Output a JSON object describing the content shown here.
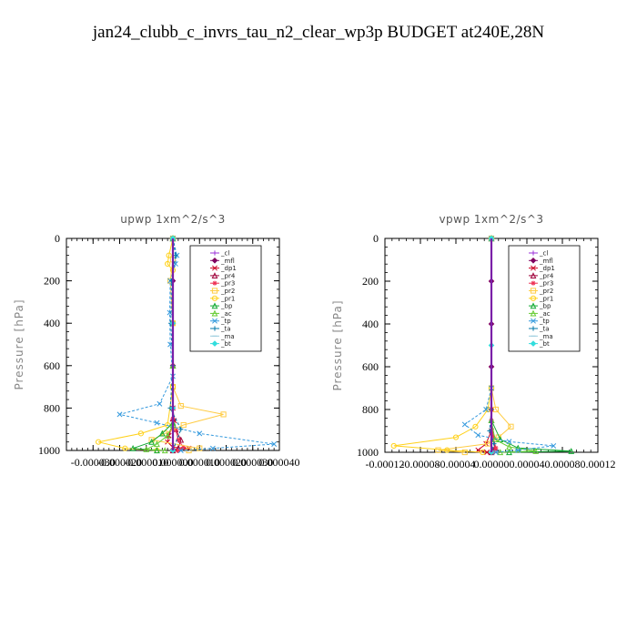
{
  "title": "jan24_clubb_c_invrs_tau_n2_clear_wp3p  BUDGET at240E,28N",
  "chart_data": [
    {
      "type": "line",
      "title": "upwp   1xm^2/s^3",
      "ylabel": "Pressure [hPa]",
      "ylim": [
        0,
        1000
      ],
      "yticks": [
        "0",
        "200",
        "400",
        "600",
        "800",
        "1000"
      ],
      "xlim": [
        -4e-05,
        4e-05
      ],
      "xticks": [
        "-0.000030",
        "-0.000020",
        "-0.000010",
        "0.000000",
        "0.000010",
        "0.000020",
        "0.000030",
        "0.000040"
      ],
      "legend": {
        "position": "top-right",
        "entries": [
          "_cl",
          "_mfl",
          "_dp1",
          "_pr4",
          "_pr3",
          "_pr2",
          "_pr1",
          "_bp",
          "_ac",
          "_tp",
          "_ta",
          "_ma",
          "_bt"
        ]
      },
      "series": [
        {
          "name": "_cl",
          "color": "#9b30d9",
          "points": [
            [
              0,
              0
            ],
            [
              0,
              200
            ],
            [
              0,
              400
            ],
            [
              0,
              600
            ],
            [
              0,
              800
            ],
            [
              0,
              1000
            ]
          ]
        },
        {
          "name": "_mfl",
          "color": "#800060",
          "points": [
            [
              0,
              0
            ],
            [
              0,
              200
            ],
            [
              0,
              400
            ],
            [
              0,
              600
            ],
            [
              0,
              800
            ],
            [
              0,
              1000
            ]
          ]
        },
        {
          "name": "_dp1",
          "color": "#cc0022",
          "points": [
            [
              0,
              0
            ],
            [
              0,
              400
            ],
            [
              0,
              800
            ],
            [
              5e-07,
              860
            ],
            [
              -1.5e-06,
              930
            ],
            [
              -2e-06,
              960
            ],
            [
              0,
              985
            ],
            [
              6e-06,
              990
            ],
            [
              1e-06,
              1000
            ]
          ]
        },
        {
          "name": "_pr4",
          "color": "#a0003a",
          "points": [
            [
              0,
              0
            ],
            [
              0,
              600
            ],
            [
              0,
              850
            ],
            [
              1e-06,
              900
            ],
            [
              3e-06,
              950
            ],
            [
              2e-06,
              990
            ],
            [
              0,
              1000
            ]
          ]
        },
        {
          "name": "_pr3",
          "color": "#ee3355",
          "points": [
            [
              0,
              0
            ],
            [
              0,
              600
            ],
            [
              0,
              850
            ],
            [
              1e-06,
              900
            ],
            [
              2e-06,
              950
            ],
            [
              4e-06,
              985
            ],
            [
              2e-06,
              1000
            ]
          ]
        },
        {
          "name": "_pr2",
          "color": "#ffcc44",
          "points": [
            [
              0,
              0
            ],
            [
              0,
              100
            ],
            [
              -1e-06,
              200
            ],
            [
              0,
              400
            ],
            [
              0,
              700
            ],
            [
              3e-06,
              790
            ],
            [
              1.9e-05,
              830
            ],
            [
              4e-06,
              880
            ],
            [
              -3e-06,
              920
            ],
            [
              -8e-06,
              950
            ],
            [
              1e-05,
              990
            ],
            [
              6e-06,
              1000
            ]
          ]
        },
        {
          "name": "_pr1",
          "color": "#ffd11a",
          "points": [
            [
              0,
              0
            ],
            [
              -1.5e-06,
              80
            ],
            [
              -2e-06,
              120
            ],
            [
              0,
              150
            ],
            [
              0,
              400
            ],
            [
              0,
              700
            ],
            [
              -2e-06,
              880
            ],
            [
              -1.2e-05,
              920
            ],
            [
              -2.8e-05,
              960
            ],
            [
              -1.8e-05,
              990
            ],
            [
              -6e-06,
              1000
            ]
          ]
        },
        {
          "name": "_bp",
          "color": "#11aa33",
          "points": [
            [
              0,
              0
            ],
            [
              0,
              600
            ],
            [
              0,
              870
            ],
            [
              -4e-06,
              920
            ],
            [
              -8e-06,
              960
            ],
            [
              -1.5e-05,
              990
            ],
            [
              -6e-06,
              1000
            ]
          ]
        },
        {
          "name": "_ac",
          "color": "#66cc33",
          "points": [
            [
              0,
              0
            ],
            [
              0,
              600
            ],
            [
              0,
              880
            ],
            [
              -2e-06,
              930
            ],
            [
              -6e-06,
              970
            ],
            [
              -1e-05,
              995
            ],
            [
              -3e-06,
              1000
            ]
          ]
        },
        {
          "name": "_tp",
          "color": "#3399dd",
          "points": [
            [
              0,
              0
            ],
            [
              1.5e-06,
              80
            ],
            [
              1e-06,
              120
            ],
            [
              -1e-06,
              200
            ],
            [
              -1.2e-06,
              350
            ],
            [
              -1e-06,
              500
            ],
            [
              0,
              650
            ],
            [
              -5e-06,
              780
            ],
            [
              -2e-05,
              830
            ],
            [
              -6e-06,
              870
            ],
            [
              1e-05,
              920
            ],
            [
              3.8e-05,
              970
            ],
            [
              1.5e-05,
              990
            ],
            [
              3e-06,
              1000
            ]
          ]
        },
        {
          "name": "_ta",
          "color": "#0077aa",
          "points": [
            [
              0,
              0
            ],
            [
              1e-06,
              80
            ],
            [
              -5e-07,
              200
            ],
            [
              -8e-07,
              400
            ],
            [
              0,
              600
            ],
            [
              -1e-06,
              800
            ],
            [
              3e-06,
              900
            ],
            [
              0,
              1000
            ]
          ]
        },
        {
          "name": "_ma",
          "color": "#99ccdd",
          "points": [
            [
              0,
              0
            ],
            [
              0,
              400
            ],
            [
              0,
              800
            ],
            [
              0,
              1000
            ]
          ]
        },
        {
          "name": "_bt",
          "color": "#33dddd",
          "points": [
            [
              0,
              0
            ],
            [
              0,
              400
            ],
            [
              0,
              800
            ],
            [
              0,
              1000
            ]
          ]
        }
      ]
    },
    {
      "type": "line",
      "title": "vpwp   1xm^2/s^3",
      "ylabel": "Pressure [hPa]",
      "ylim": [
        0,
        1000
      ],
      "yticks": [
        "0",
        "200",
        "400",
        "600",
        "800",
        "1000"
      ],
      "xlim": [
        -0.00012,
        0.00012
      ],
      "xticks": [
        "-0.00012",
        "-0.00008",
        "-0.00004",
        "0.00000",
        "0.00004",
        "0.00008",
        "0.00012"
      ],
      "legend": {
        "position": "top-right",
        "entries": [
          "_cl",
          "_mfl",
          "_dp1",
          "_pr4",
          "_pr3",
          "_pr2",
          "_pr1",
          "_bp",
          "_ac",
          "_tp",
          "_ta",
          "_ma",
          "_bt"
        ]
      },
      "series": [
        {
          "name": "_cl",
          "color": "#9b30d9",
          "points": [
            [
              0,
              0
            ],
            [
              0,
              200
            ],
            [
              0,
              400
            ],
            [
              0,
              600
            ],
            [
              0,
              800
            ],
            [
              0,
              1000
            ]
          ]
        },
        {
          "name": "_mfl",
          "color": "#800060",
          "points": [
            [
              0,
              0
            ],
            [
              0,
              200
            ],
            [
              0,
              400
            ],
            [
              0,
              600
            ],
            [
              0,
              800
            ],
            [
              0,
              1000
            ]
          ]
        },
        {
          "name": "_dp1",
          "color": "#cc0022",
          "points": [
            [
              0,
              0
            ],
            [
              0,
              800
            ],
            [
              0,
              900
            ],
            [
              -6e-06,
              960
            ],
            [
              -1.5e-05,
              990
            ],
            [
              -5e-06,
              1000
            ]
          ]
        },
        {
          "name": "_pr4",
          "color": "#a0003a",
          "points": [
            [
              0,
              0
            ],
            [
              0,
              850
            ],
            [
              2e-06,
              930
            ],
            [
              4e-06,
              980
            ],
            [
              0,
              1000
            ]
          ]
        },
        {
          "name": "_pr3",
          "color": "#ee3355",
          "points": [
            [
              0,
              0
            ],
            [
              0,
              850
            ],
            [
              2e-06,
              930
            ],
            [
              5e-06,
              980
            ],
            [
              2e-06,
              1000
            ]
          ]
        },
        {
          "name": "_pr2",
          "color": "#ffcc44",
          "points": [
            [
              0,
              0
            ],
            [
              0,
              700
            ],
            [
              5e-06,
              800
            ],
            [
              2.2e-05,
              880
            ],
            [
              8e-06,
              930
            ],
            [
              -4e-06,
              960
            ],
            [
              -6e-05,
              990
            ],
            [
              -3e-05,
              1000
            ]
          ]
        },
        {
          "name": "_pr1",
          "color": "#ffd11a",
          "points": [
            [
              0,
              0
            ],
            [
              0,
              700
            ],
            [
              -4e-06,
              800
            ],
            [
              -1.8e-05,
              880
            ],
            [
              -4e-05,
              930
            ],
            [
              -0.00011,
              970
            ],
            [
              -5e-05,
              990
            ],
            [
              -1e-05,
              1000
            ]
          ]
        },
        {
          "name": "_bp",
          "color": "#11aa33",
          "points": [
            [
              0,
              0
            ],
            [
              0,
              850
            ],
            [
              1e-05,
              940
            ],
            [
              3e-05,
              980
            ],
            [
              9e-05,
              995
            ],
            [
              2e-05,
              1000
            ]
          ]
        },
        {
          "name": "_ac",
          "color": "#66cc33",
          "points": [
            [
              0,
              0
            ],
            [
              0,
              850
            ],
            [
              4e-06,
              940
            ],
            [
              2e-05,
              975
            ],
            [
              5e-05,
              995
            ],
            [
              1e-05,
              1000
            ]
          ]
        },
        {
          "name": "_tp",
          "color": "#3399dd",
          "points": [
            [
              0,
              0
            ],
            [
              0,
              700
            ],
            [
              -6e-06,
              800
            ],
            [
              -3e-05,
              870
            ],
            [
              -1.5e-05,
              920
            ],
            [
              2e-05,
              950
            ],
            [
              7e-05,
              970
            ],
            [
              3e-05,
              990
            ],
            [
              5e-06,
              1000
            ]
          ]
        },
        {
          "name": "_ta",
          "color": "#0077aa",
          "points": [
            [
              0,
              0
            ],
            [
              0,
              800
            ],
            [
              -2e-06,
              900
            ],
            [
              3e-06,
              960
            ],
            [
              0,
              1000
            ]
          ]
        },
        {
          "name": "_ma",
          "color": "#99ccdd",
          "points": [
            [
              0,
              0
            ],
            [
              0,
              500
            ],
            [
              0,
              1000
            ]
          ]
        },
        {
          "name": "_bt",
          "color": "#33dddd",
          "points": [
            [
              0,
              0
            ],
            [
              0,
              500
            ],
            [
              0,
              1000
            ]
          ]
        }
      ]
    }
  ]
}
